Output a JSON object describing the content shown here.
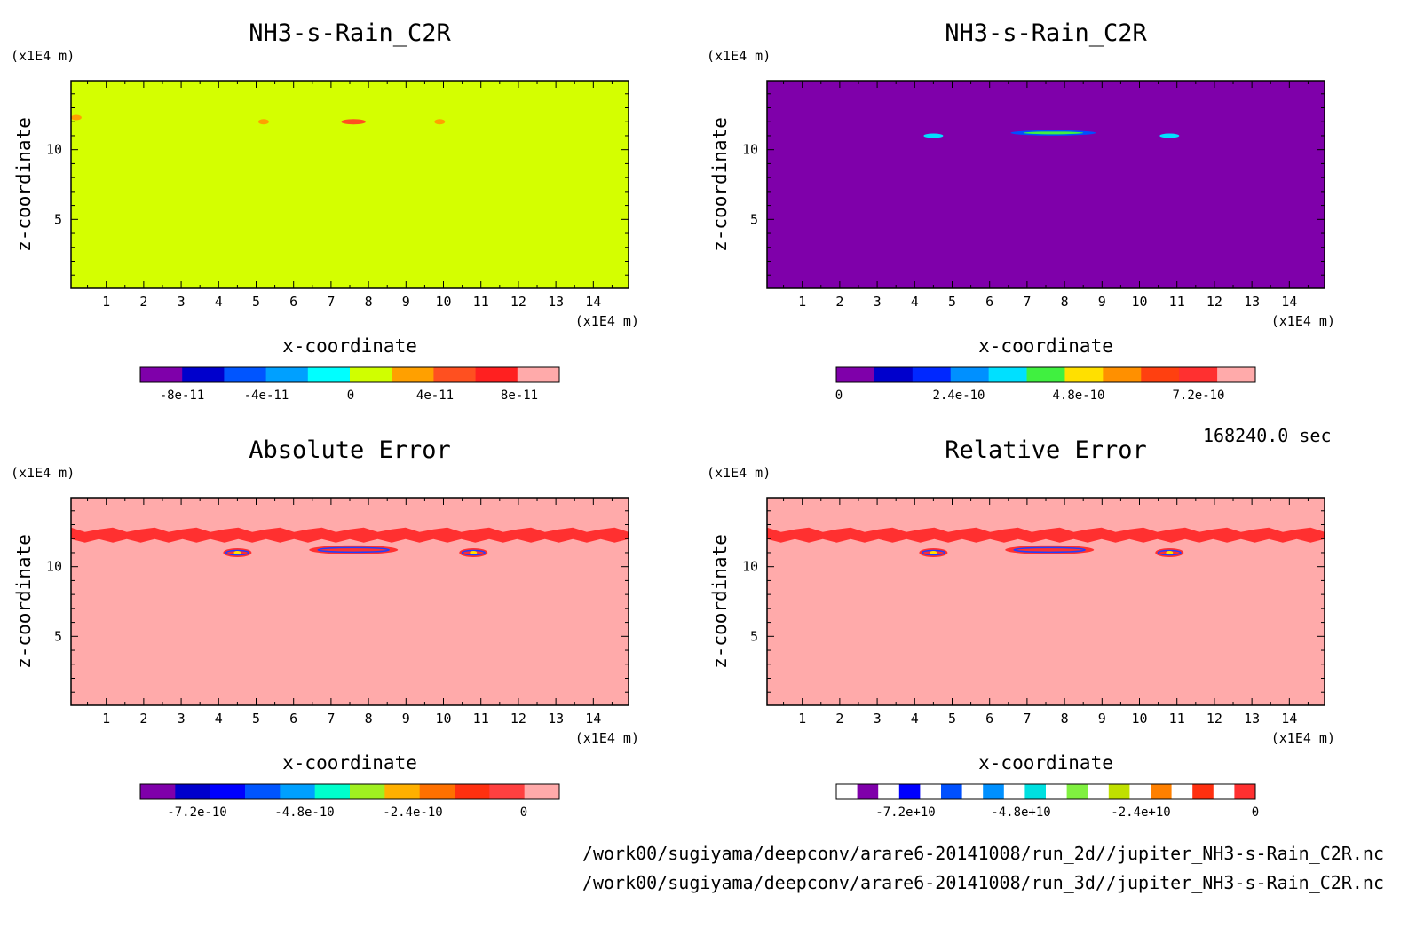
{
  "time_label": "168240.0 sec",
  "footer": {
    "file_2d": "/work00/sugiyama/deepconv/arare6-20141008/run_2d//jupiter_NH3-s-Rain_C2R.nc",
    "file_3d": "/work00/sugiyama/deepconv/arare6-20141008/run_3d//jupiter_NH3-s-Rain_C2R.nc"
  },
  "chart_data": [
    {
      "type": "heatmap",
      "title": "NH3-s-Rain_C2R",
      "xlabel": "x-coordinate",
      "ylabel": "z-coordinate",
      "x_unit": "(x1E4 m)",
      "y_unit": "(x1E4 m)",
      "xlim": [
        0.06,
        14.94
      ],
      "ylim": [
        0.06,
        14.94
      ],
      "xticks": [
        "1",
        "2",
        "3",
        "4",
        "5",
        "6",
        "7",
        "8",
        "9",
        "10",
        "11",
        "12",
        "13",
        "14"
      ],
      "yticks": [
        "5",
        "10"
      ],
      "background_color": "#d4ff00",
      "colorbar": {
        "colors": [
          "#7f00aa",
          "#0000cc",
          "#0055ff",
          "#00a0ff",
          "#00ffff",
          "#d0ff00",
          "#ffa000",
          "#ff5020",
          "#ff2020",
          "#ffaaaa"
        ],
        "tick_labels": [
          "-8e-11",
          "-4e-11",
          "0",
          "4e-11",
          "8e-11"
        ]
      },
      "features": [
        {
          "x": 7.6,
          "z": 12.0,
          "color": "#ff5020"
        },
        {
          "x": 5.2,
          "z": 12.0,
          "color": "#ffa000"
        },
        {
          "x": 9.9,
          "z": 12.0,
          "color": "#ffa000"
        },
        {
          "x": 0.2,
          "z": 12.3,
          "color": "#ffa000"
        }
      ]
    },
    {
      "type": "heatmap",
      "title": "NH3-s-Rain_C2R",
      "xlabel": "x-coordinate",
      "ylabel": "z-coordinate",
      "x_unit": "(x1E4 m)",
      "y_unit": "(x1E4 m)",
      "xlim": [
        0.06,
        14.94
      ],
      "ylim": [
        0.06,
        14.94
      ],
      "xticks": [
        "1",
        "2",
        "3",
        "4",
        "5",
        "6",
        "7",
        "8",
        "9",
        "10",
        "11",
        "12",
        "13",
        "14"
      ],
      "yticks": [
        "5",
        "10"
      ],
      "background_color": "#7f00aa",
      "colorbar": {
        "colors": [
          "#7f00aa",
          "#0000cc",
          "#0028ff",
          "#0090ff",
          "#00e0ff",
          "#40f040",
          "#ffe000",
          "#ff9000",
          "#ff4010",
          "#ff3030",
          "#ffaaaa"
        ],
        "tick_labels": [
          "0",
          "2.4e-10",
          "4.8e-10",
          "7.2e-10"
        ]
      },
      "features": [
        {
          "x": 7.7,
          "z": 11.2,
          "color": "#0050ff"
        },
        {
          "x": 4.5,
          "z": 11.0,
          "color": "#00e0ff"
        },
        {
          "x": 10.8,
          "z": 11.0,
          "color": "#00e0ff"
        }
      ]
    },
    {
      "type": "heatmap",
      "title": "Absolute Error",
      "xlabel": "x-coordinate",
      "ylabel": "z-coordinate",
      "x_unit": "(x1E4 m)",
      "y_unit": "(x1E4 m)",
      "xlim": [
        0.06,
        14.94
      ],
      "ylim": [
        0.06,
        14.94
      ],
      "xticks": [
        "1",
        "2",
        "3",
        "4",
        "5",
        "6",
        "7",
        "8",
        "9",
        "10",
        "11",
        "12",
        "13",
        "14"
      ],
      "yticks": [
        "5",
        "10"
      ],
      "background_color": "#ffaaaa",
      "colorbar": {
        "colors": [
          "#7f00aa",
          "#0000cc",
          "#0000ff",
          "#0055ff",
          "#00a0ff",
          "#00ffcc",
          "#a0f020",
          "#ffb000",
          "#ff7000",
          "#ff3010",
          "#ff4040",
          "#ffaaaa"
        ],
        "tick_labels": [
          "-7.2e-10",
          "-4.8e-10",
          "-2.4e-10",
          "0"
        ]
      },
      "features": [
        {
          "x": 7.6,
          "z": 11.2,
          "color": "#ff3030"
        },
        {
          "x": 4.5,
          "z": 11.0,
          "color": "#ff3030"
        },
        {
          "x": 10.8,
          "z": 11.0,
          "color": "#ff3030"
        }
      ]
    },
    {
      "type": "heatmap",
      "title": "Relative Error",
      "xlabel": "x-coordinate",
      "ylabel": "z-coordinate",
      "x_unit": "(x1E4 m)",
      "y_unit": "(x1E4 m)",
      "xlim": [
        0.06,
        14.94
      ],
      "ylim": [
        0.06,
        14.94
      ],
      "xticks": [
        "1",
        "2",
        "3",
        "4",
        "5",
        "6",
        "7",
        "8",
        "9",
        "10",
        "11",
        "12",
        "13",
        "14"
      ],
      "yticks": [
        "5",
        "10"
      ],
      "background_color": "#ffaaaa",
      "colorbar": {
        "colors": [
          "#ffffff",
          "#7f00aa",
          "#ffffff",
          "#0000ff",
          "#ffffff",
          "#0050ff",
          "#ffffff",
          "#0090ff",
          "#ffffff",
          "#00e0e0",
          "#ffffff",
          "#80f040",
          "#ffffff",
          "#c0e000",
          "#ffffff",
          "#ff8000",
          "#ffffff",
          "#ff3010",
          "#ffffff",
          "#ff3030"
        ],
        "tick_labels": [
          "-7.2e+10",
          "-4.8e+10",
          "-2.4e+10",
          "0"
        ]
      },
      "features": [
        {
          "x": 7.6,
          "z": 11.2,
          "color": "#ff3030"
        },
        {
          "x": 4.5,
          "z": 11.0,
          "color": "#ff3030"
        },
        {
          "x": 10.8,
          "z": 11.0,
          "color": "#ff3030"
        }
      ]
    }
  ]
}
